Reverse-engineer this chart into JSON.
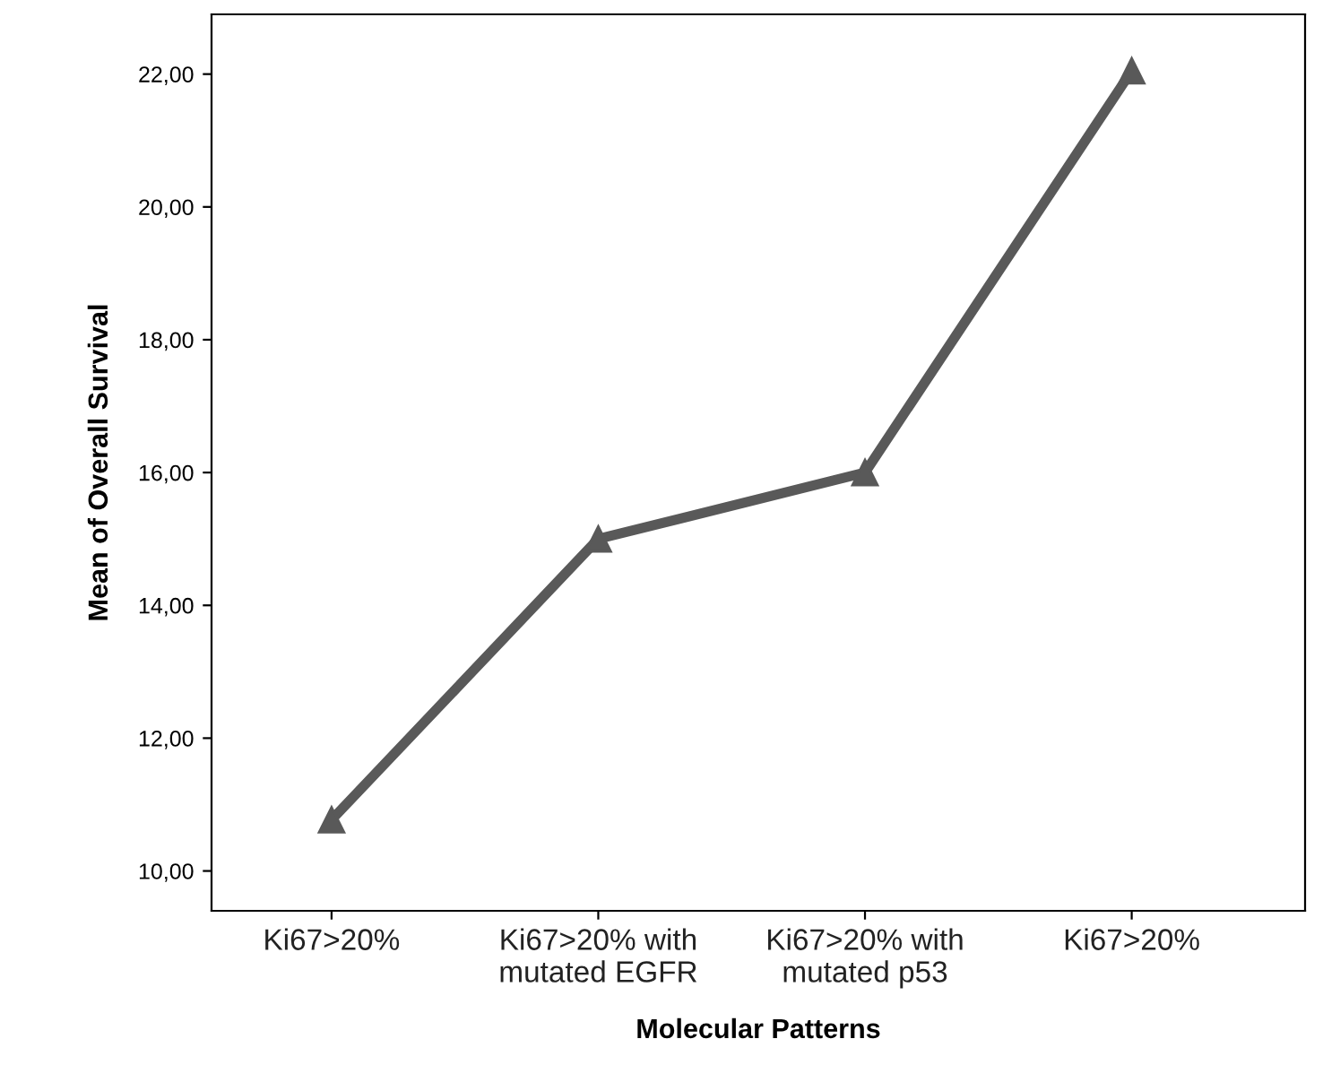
{
  "chart_data": {
    "type": "line",
    "xlabel": "Molecular Patterns",
    "ylabel": "Mean of Overall Survival",
    "categories": [
      "Ki67>20%",
      "Ki67>20% with\nmutated EGFR",
      "Ki67>20% with\nmutated p53",
      "Ki67>20%"
    ],
    "series": [
      {
        "color": "#595959",
        "values": [
          10.77,
          15.0,
          16.0,
          22.05
        ]
      }
    ],
    "ylim": [
      9.4,
      22.9
    ],
    "yticks": [
      {
        "value": 10,
        "label": "10,00"
      },
      {
        "value": 12,
        "label": "12,00"
      },
      {
        "value": 14,
        "label": "14,00"
      },
      {
        "value": 16,
        "label": "16,00"
      },
      {
        "value": 18,
        "label": "18,00"
      },
      {
        "value": 20,
        "label": "20,00"
      },
      {
        "value": 22,
        "label": "22,00"
      }
    ],
    "marker": "triangle",
    "line_style": "solid",
    "grid": false,
    "legend": false
  }
}
